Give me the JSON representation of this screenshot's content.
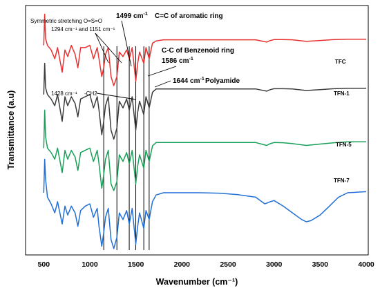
{
  "chart_data": {
    "type": "line",
    "xlabel": "Wavenumber (cm⁻¹)",
    "ylabel": "Transmittance (a.u)",
    "xlim": [
      400,
      4000
    ],
    "x_ticks": [
      500,
      1000,
      1500,
      2000,
      2500,
      3000,
      3500,
      4000
    ],
    "grid": false,
    "y_ticks_shown": false,
    "series": [
      {
        "name": "TFC",
        "color": "#e8302f",
        "baseline": 0.84,
        "points": [
          [
            500,
            0.84
          ],
          [
            510,
            0.98
          ],
          [
            520,
            0.87
          ],
          [
            540,
            0.84
          ],
          [
            580,
            0.82
          ],
          [
            620,
            0.78
          ],
          [
            650,
            0.83
          ],
          [
            700,
            0.72
          ],
          [
            730,
            0.82
          ],
          [
            760,
            0.79
          ],
          [
            800,
            0.84
          ],
          [
            840,
            0.8
          ],
          [
            870,
            0.74
          ],
          [
            900,
            0.83
          ],
          [
            950,
            0.83
          ],
          [
            1000,
            0.84
          ],
          [
            1040,
            0.78
          ],
          [
            1080,
            0.83
          ],
          [
            1100,
            0.78
          ],
          [
            1130,
            0.7
          ],
          [
            1151,
            0.74
          ],
          [
            1170,
            0.8
          ],
          [
            1200,
            0.83
          ],
          [
            1230,
            0.7
          ],
          [
            1260,
            0.66
          ],
          [
            1294,
            0.7
          ],
          [
            1320,
            0.81
          ],
          [
            1360,
            0.79
          ],
          [
            1400,
            0.82
          ],
          [
            1428,
            0.78
          ],
          [
            1460,
            0.83
          ],
          [
            1499,
            0.68
          ],
          [
            1520,
            0.76
          ],
          [
            1540,
            0.81
          ],
          [
            1586,
            0.76
          ],
          [
            1610,
            0.83
          ],
          [
            1644,
            0.78
          ],
          [
            1680,
            0.85
          ],
          [
            1720,
            0.86
          ],
          [
            1800,
            0.865
          ],
          [
            2000,
            0.865
          ],
          [
            2200,
            0.865
          ],
          [
            2400,
            0.865
          ],
          [
            2600,
            0.865
          ],
          [
            2800,
            0.865
          ],
          [
            2920,
            0.855
          ],
          [
            2960,
            0.862
          ],
          [
            3000,
            0.866
          ],
          [
            3100,
            0.866
          ],
          [
            3200,
            0.865
          ],
          [
            3350,
            0.858
          ],
          [
            3500,
            0.862
          ],
          [
            3650,
            0.866
          ],
          [
            3800,
            0.868
          ],
          [
            4000,
            0.868
          ]
        ]
      },
      {
        "name": "TFN-1",
        "color": "#3c3c3c",
        "baseline": 0.62,
        "points": [
          [
            500,
            0.62
          ],
          [
            510,
            0.76
          ],
          [
            520,
            0.65
          ],
          [
            540,
            0.62
          ],
          [
            580,
            0.6
          ],
          [
            620,
            0.57
          ],
          [
            650,
            0.62
          ],
          [
            700,
            0.5
          ],
          [
            730,
            0.61
          ],
          [
            760,
            0.57
          ],
          [
            800,
            0.61
          ],
          [
            840,
            0.58
          ],
          [
            870,
            0.52
          ],
          [
            900,
            0.6
          ],
          [
            950,
            0.61
          ],
          [
            1000,
            0.62
          ],
          [
            1040,
            0.56
          ],
          [
            1080,
            0.61
          ],
          [
            1100,
            0.55
          ],
          [
            1130,
            0.44
          ],
          [
            1151,
            0.5
          ],
          [
            1170,
            0.57
          ],
          [
            1200,
            0.61
          ],
          [
            1230,
            0.46
          ],
          [
            1260,
            0.42
          ],
          [
            1294,
            0.47
          ],
          [
            1320,
            0.59
          ],
          [
            1360,
            0.56
          ],
          [
            1400,
            0.6
          ],
          [
            1428,
            0.55
          ],
          [
            1460,
            0.61
          ],
          [
            1499,
            0.46
          ],
          [
            1520,
            0.54
          ],
          [
            1540,
            0.59
          ],
          [
            1586,
            0.53
          ],
          [
            1610,
            0.61
          ],
          [
            1644,
            0.56
          ],
          [
            1680,
            0.63
          ],
          [
            1720,
            0.645
          ],
          [
            1800,
            0.645
          ],
          [
            2000,
            0.645
          ],
          [
            2200,
            0.645
          ],
          [
            2400,
            0.645
          ],
          [
            2600,
            0.645
          ],
          [
            2800,
            0.645
          ],
          [
            2920,
            0.635
          ],
          [
            2960,
            0.642
          ],
          [
            3000,
            0.646
          ],
          [
            3100,
            0.646
          ],
          [
            3200,
            0.645
          ],
          [
            3350,
            0.638
          ],
          [
            3500,
            0.642
          ],
          [
            3650,
            0.646
          ],
          [
            3800,
            0.648
          ],
          [
            4000,
            0.648
          ]
        ]
      },
      {
        "name": "TFN-5",
        "color": "#18a058",
        "baseline": 0.38,
        "points": [
          [
            500,
            0.38
          ],
          [
            510,
            0.55
          ],
          [
            520,
            0.43
          ],
          [
            540,
            0.38
          ],
          [
            580,
            0.36
          ],
          [
            620,
            0.33
          ],
          [
            650,
            0.38
          ],
          [
            700,
            0.27
          ],
          [
            730,
            0.37
          ],
          [
            760,
            0.33
          ],
          [
            800,
            0.37
          ],
          [
            840,
            0.34
          ],
          [
            870,
            0.28
          ],
          [
            900,
            0.36
          ],
          [
            950,
            0.37
          ],
          [
            1000,
            0.38
          ],
          [
            1040,
            0.32
          ],
          [
            1080,
            0.37
          ],
          [
            1100,
            0.31
          ],
          [
            1130,
            0.2
          ],
          [
            1151,
            0.26
          ],
          [
            1170,
            0.33
          ],
          [
            1200,
            0.37
          ],
          [
            1230,
            0.22
          ],
          [
            1260,
            0.19
          ],
          [
            1294,
            0.23
          ],
          [
            1320,
            0.35
          ],
          [
            1360,
            0.32
          ],
          [
            1400,
            0.36
          ],
          [
            1428,
            0.31
          ],
          [
            1460,
            0.37
          ],
          [
            1499,
            0.22
          ],
          [
            1520,
            0.3
          ],
          [
            1540,
            0.35
          ],
          [
            1586,
            0.29
          ],
          [
            1610,
            0.37
          ],
          [
            1644,
            0.32
          ],
          [
            1680,
            0.39
          ],
          [
            1720,
            0.405
          ],
          [
            1800,
            0.405
          ],
          [
            2000,
            0.405
          ],
          [
            2200,
            0.405
          ],
          [
            2400,
            0.405
          ],
          [
            2600,
            0.405
          ],
          [
            2800,
            0.405
          ],
          [
            2920,
            0.392
          ],
          [
            2960,
            0.4
          ],
          [
            3000,
            0.405
          ],
          [
            3100,
            0.404
          ],
          [
            3200,
            0.4
          ],
          [
            3350,
            0.392
          ],
          [
            3500,
            0.398
          ],
          [
            3650,
            0.404
          ],
          [
            3800,
            0.408
          ],
          [
            4000,
            0.408
          ]
        ]
      },
      {
        "name": "TFN-7",
        "color": "#1f6fd6",
        "baseline": 0.18,
        "points": [
          [
            500,
            0.18
          ],
          [
            510,
            0.33
          ],
          [
            520,
            0.24
          ],
          [
            540,
            0.16
          ],
          [
            580,
            0.13
          ],
          [
            620,
            0.09
          ],
          [
            650,
            0.14
          ],
          [
            700,
            0.04
          ],
          [
            730,
            0.12
          ],
          [
            760,
            0.08
          ],
          [
            800,
            0.12
          ],
          [
            840,
            0.09
          ],
          [
            870,
            0.03
          ],
          [
            900,
            0.1
          ],
          [
            950,
            0.12
          ],
          [
            1000,
            0.13
          ],
          [
            1040,
            0.07
          ],
          [
            1080,
            0.11
          ],
          [
            1100,
            0.03
          ],
          [
            1130,
            -0.06
          ],
          [
            1151,
            0.0
          ],
          [
            1170,
            0.07
          ],
          [
            1200,
            0.11
          ],
          [
            1230,
            -0.03
          ],
          [
            1260,
            -0.07
          ],
          [
            1294,
            -0.02
          ],
          [
            1320,
            0.09
          ],
          [
            1360,
            0.06
          ],
          [
            1400,
            0.1
          ],
          [
            1428,
            0.04
          ],
          [
            1460,
            0.11
          ],
          [
            1499,
            -0.05
          ],
          [
            1520,
            0.03
          ],
          [
            1540,
            0.09
          ],
          [
            1586,
            0.02
          ],
          [
            1610,
            0.1
          ],
          [
            1644,
            0.06
          ],
          [
            1680,
            0.14
          ],
          [
            1720,
            0.17
          ],
          [
            1800,
            0.18
          ],
          [
            2000,
            0.18
          ],
          [
            2200,
            0.18
          ],
          [
            2400,
            0.178
          ],
          [
            2600,
            0.172
          ],
          [
            2800,
            0.16
          ],
          [
            2900,
            0.13
          ],
          [
            2960,
            0.14
          ],
          [
            3000,
            0.145
          ],
          [
            3100,
            0.12
          ],
          [
            3200,
            0.09
          ],
          [
            3300,
            0.06
          ],
          [
            3350,
            0.05
          ],
          [
            3400,
            0.055
          ],
          [
            3500,
            0.08
          ],
          [
            3600,
            0.12
          ],
          [
            3700,
            0.16
          ],
          [
            3800,
            0.18
          ],
          [
            4000,
            0.185
          ]
        ]
      }
    ],
    "reference_lines_x": [
      1151,
      1294,
      1428,
      1499,
      1586,
      1644
    ],
    "annotations": {
      "sym_stretch_title": "Symmetric stretching O=S=O",
      "sym_stretch_values": "1294 cm⁻¹  and 1151 cm⁻¹",
      "aromatic_value": "1499 cm",
      "aromatic_value_sup": "-1",
      "aromatic_label": "C=C of aromatic ring",
      "benzenoid_label": "C-C of Benzenoid ring",
      "benzenoid_value": "1586 cm",
      "benzenoid_value_sup": "-1",
      "ch2_value": "1428 cm⁻¹",
      "ch2_label": "-CH2",
      "polyamide_value": "1644 cm",
      "polyamide_value_sup": "-1",
      "polyamide_label": "Polyamide"
    }
  }
}
